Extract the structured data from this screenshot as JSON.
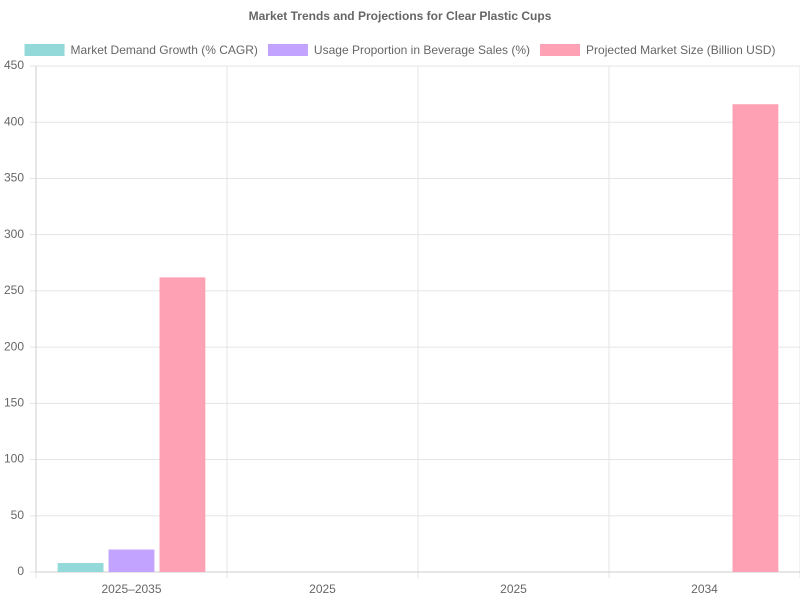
{
  "chart_data": {
    "type": "bar",
    "title": "Market Trends and Projections for Clear Plastic Cups",
    "categories": [
      "2025–2035",
      "2025",
      "2025",
      "2034"
    ],
    "series": [
      {
        "name": "Market Demand Growth (% CAGR)",
        "color": "#93d9d9",
        "values": [
          8,
          null,
          null,
          null
        ]
      },
      {
        "name": "Usage Proportion in Beverage Sales (%)",
        "color": "#c2a3ff",
        "values": [
          20,
          null,
          null,
          null
        ]
      },
      {
        "name": "Projected Market Size (Billion USD)",
        "color": "#ffa1b5",
        "values": [
          262,
          null,
          null,
          416
        ]
      }
    ],
    "ylim": [
      0,
      450
    ],
    "yticks": [
      0,
      50,
      100,
      150,
      200,
      250,
      300,
      350,
      400,
      450
    ],
    "grid": true,
    "legend": "top"
  }
}
